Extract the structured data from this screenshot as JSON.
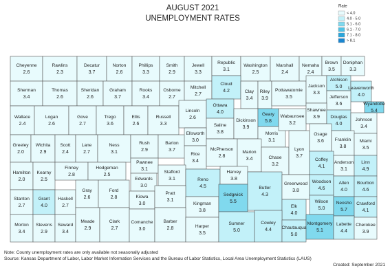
{
  "title": [
    "AUGUST 2021",
    "UNEMPLOYMENT RATES"
  ],
  "legend": {
    "title": "Rate",
    "items": [
      {
        "label": "< 4.0",
        "color": "#e8fbfd"
      },
      {
        "label": "4.0 - 5.0",
        "color": "#c2f1f9"
      },
      {
        "label": "5.1 - 6.0",
        "color": "#80d9ee"
      },
      {
        "label": "6.1 - 7.0",
        "color": "#4fc3e6"
      },
      {
        "label": "7.1 - 8.0",
        "color": "#2aa6dc"
      },
      {
        "label": "> 8.1",
        "color": "#1a86d0"
      }
    ]
  },
  "fill": "#e8fbfd",
  "counties": [
    {
      "name": "Cheyenne",
      "value": 2.6
    },
    {
      "name": "Rawlins",
      "value": 2.3
    },
    {
      "name": "Decatur",
      "value": 3.7
    },
    {
      "name": "Norton",
      "value": 2.6
    },
    {
      "name": "Phillips",
      "value": 3.3
    },
    {
      "name": "Smith",
      "value": 2.9
    },
    {
      "name": "Jewell",
      "value": 3.3
    },
    {
      "name": "Republic",
      "value": 3.1
    },
    {
      "name": "Washington",
      "value": 2.5
    },
    {
      "name": "Marshall",
      "value": 2.4
    },
    {
      "name": "Nemaha",
      "value": 2.4
    },
    {
      "name": "Brown",
      "value": 3.5
    },
    {
      "name": "Doniphan",
      "value": 3.3
    },
    {
      "name": "Sherman",
      "value": 3.4
    },
    {
      "name": "Thomas",
      "value": 2.6
    },
    {
      "name": "Sheridan",
      "value": 2.6
    },
    {
      "name": "Graham",
      "value": 3.7
    },
    {
      "name": "Rooks",
      "value": 3.4
    },
    {
      "name": "Osborne",
      "value": 2.7
    },
    {
      "name": "Mitchell",
      "value": 2.7
    },
    {
      "name": "Cloud",
      "value": 4.2,
      "color": "#c2f1f9"
    },
    {
      "name": "Clay",
      "value": 3.4
    },
    {
      "name": "Riley",
      "value": 3.9
    },
    {
      "name": "Pottawatomie",
      "value": 3.5
    },
    {
      "name": "Jackson",
      "value": 3.3
    },
    {
      "name": "Atchison",
      "value": 5.0,
      "value_label": "5.0",
      "color": "#c2f1f9"
    },
    {
      "name": "Leavenworth",
      "value": 4.0,
      "value_label": "4.0",
      "color": "#c2f1f9"
    },
    {
      "name": "Jefferson",
      "value": 3.6
    },
    {
      "name": "Wyandotte",
      "value": 5.4,
      "color": "#80d9ee"
    },
    {
      "name": "Wallace",
      "value": 2.4
    },
    {
      "name": "Logan",
      "value": 2.6
    },
    {
      "name": "Gove",
      "value": 2.7
    },
    {
      "name": "Trego",
      "value": 3.6
    },
    {
      "name": "Ellis",
      "value": 2.6
    },
    {
      "name": "Russell",
      "value": 3.3
    },
    {
      "name": "Lincoln",
      "value": 2.6
    },
    {
      "name": "Ottawa",
      "value": 4.0,
      "value_label": "4.0",
      "color": "#c2f1f9"
    },
    {
      "name": "Saline",
      "value": 3.8
    },
    {
      "name": "Dickinson",
      "value": 3.9
    },
    {
      "name": "Geary",
      "value": 5.8,
      "color": "#80d9ee"
    },
    {
      "name": "Morris",
      "value": 3.1
    },
    {
      "name": "Wabaunsee",
      "value": 3.2
    },
    {
      "name": "Shawnee",
      "value": 3.9
    },
    {
      "name": "Douglas",
      "value": 4.0,
      "value_label": "4.0",
      "color": "#c2f1f9"
    },
    {
      "name": "Johnson",
      "value": 3.4
    },
    {
      "name": "Greeley",
      "value": 2.0,
      "value_label": "2.0"
    },
    {
      "name": "Wichita",
      "value": 2.9
    },
    {
      "name": "Scott",
      "value": 2.4
    },
    {
      "name": "Lane",
      "value": 2.7
    },
    {
      "name": "Ness",
      "value": 3.1
    },
    {
      "name": "Rush",
      "value": 2.9
    },
    {
      "name": "Barton",
      "value": 3.7
    },
    {
      "name": "Ellsworth",
      "value": 3.0,
      "value_label": "3.0"
    },
    {
      "name": "Rice",
      "value": 3.4
    },
    {
      "name": "McPherson",
      "value": 2.8
    },
    {
      "name": "Marion",
      "value": 3.4
    },
    {
      "name": "Chase",
      "value": 3.2
    },
    {
      "name": "Lyon",
      "value": 3.7
    },
    {
      "name": "Osage",
      "value": 3.6
    },
    {
      "name": "Franklin",
      "value": 3.8
    },
    {
      "name": "Miami",
      "value": 3.5
    },
    {
      "name": "Hamilton",
      "value": 2.0,
      "value_label": "2.0"
    },
    {
      "name": "Kearny",
      "value": 2.5
    },
    {
      "name": "Finney",
      "value": 2.8
    },
    {
      "name": "Hodgeman",
      "value": 2.5
    },
    {
      "name": "Pawnee",
      "value": 3.1
    },
    {
      "name": "Edwards",
      "value": 3.0,
      "value_label": "3.0"
    },
    {
      "name": "Stafford",
      "value": 3.1
    },
    {
      "name": "Reno",
      "value": 4.5,
      "color": "#c2f1f9"
    },
    {
      "name": "Harvey",
      "value": 3.8
    },
    {
      "name": "Butler",
      "value": 4.3,
      "color": "#c2f1f9"
    },
    {
      "name": "Greenwood",
      "value": 3.8
    },
    {
      "name": "Coffey",
      "value": 4.1,
      "color": "#c2f1f9"
    },
    {
      "name": "Anderson",
      "value": 3.1
    },
    {
      "name": "Linn",
      "value": 4.9,
      "color": "#c2f1f9"
    },
    {
      "name": "Woodson",
      "value": 4.6,
      "color": "#c2f1f9"
    },
    {
      "name": "Allen",
      "value": 4.0,
      "value_label": "4.0",
      "color": "#c2f1f9"
    },
    {
      "name": "Bourbon",
      "value": 4.6,
      "color": "#c2f1f9"
    },
    {
      "name": "Stanton",
      "value": 2.7
    },
    {
      "name": "Grant",
      "value": 4.0,
      "value_label": "4.0",
      "color": "#c2f1f9"
    },
    {
      "name": "Haskell",
      "value": 2.7
    },
    {
      "name": "Gray",
      "value": 2.6
    },
    {
      "name": "Ford",
      "value": 2.8
    },
    {
      "name": "Kiowa",
      "value": 3.0,
      "value_label": "3.0"
    },
    {
      "name": "Pratt",
      "value": 3.1
    },
    {
      "name": "Kingman",
      "value": 3.8
    },
    {
      "name": "Sedgwick",
      "value": 5.5,
      "color": "#80d9ee"
    },
    {
      "name": "Elk",
      "value": 4.0,
      "value_label": "4.0",
      "color": "#c2f1f9"
    },
    {
      "name": "Wilson",
      "value": 5.0,
      "value_label": "5.0",
      "color": "#c2f1f9"
    },
    {
      "name": "Neosho",
      "value": 5.7,
      "color": "#80d9ee"
    },
    {
      "name": "Crawford",
      "value": 4.1,
      "color": "#c2f1f9"
    },
    {
      "name": "Morton",
      "value": 3.4
    },
    {
      "name": "Stevens",
      "value": 2.9
    },
    {
      "name": "Seward",
      "value": 3.4
    },
    {
      "name": "Meade",
      "value": 2.9
    },
    {
      "name": "Clark",
      "value": 2.7
    },
    {
      "name": "Comanche",
      "value": 3.0,
      "value_label": "3.0"
    },
    {
      "name": "Barber",
      "value": 2.8
    },
    {
      "name": "Harper",
      "value": 3.5
    },
    {
      "name": "Sumner",
      "value": 5.0,
      "value_label": "5.0",
      "color": "#c2f1f9"
    },
    {
      "name": "Cowley",
      "value": 4.4,
      "color": "#c2f1f9"
    },
    {
      "name": "Chautauqua",
      "value": 5.0,
      "value_label": "5.0",
      "color": "#c2f1f9"
    },
    {
      "name": "Montgomery",
      "value": 5.1,
      "color": "#80d9ee"
    },
    {
      "name": "Labette",
      "value": 4.4,
      "color": "#c2f1f9"
    },
    {
      "name": "Cherokee",
      "value": 3.9
    }
  ],
  "notes": [
    "Note: County unemployment rates are only available not seasonally adjusted",
    "Source: Kansas Department of Labor, Labor Market Information Services and the Bureau of Labor Statistics, Local Area Unemployment Statistics (LAUS)",
    "Created: September 2021"
  ]
}
